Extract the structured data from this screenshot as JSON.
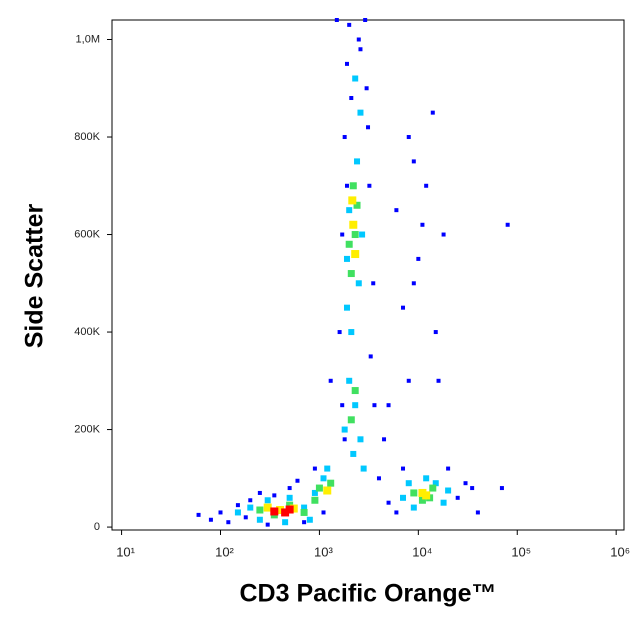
{
  "chart_data": {
    "type": "scatter",
    "x_label": "CD3 Pacific Orange™",
    "y_label": "Side Scatter",
    "x_log": true,
    "xlim": [
      8,
      1200000
    ],
    "ylim": [
      -6000,
      1040000
    ],
    "xticks": [
      {
        "value": 10,
        "label": "10¹"
      },
      {
        "value": 100,
        "label": "10²"
      },
      {
        "value": 1000,
        "label": "10³"
      },
      {
        "value": 10000,
        "label": "10⁴"
      },
      {
        "value": 100000,
        "label": "10⁵"
      },
      {
        "value": 1000000,
        "label": "10⁶"
      }
    ],
    "yticks": [
      0,
      {
        "value": 200000,
        "label": "200K"
      },
      {
        "value": 400000,
        "label": "400K"
      },
      {
        "value": 600000,
        "label": "600K"
      },
      {
        "value": 800000,
        "label": "800K"
      },
      {
        "value": 1000000,
        "label": "1,0M"
      }
    ],
    "series": [
      {
        "color": "#0000ff",
        "x": [
          60,
          80,
          100,
          120,
          150,
          180,
          250,
          300,
          500,
          700,
          900,
          1100,
          600,
          350,
          200,
          1300,
          1600,
          1700,
          1800,
          1900,
          2500,
          3000,
          3200,
          3500,
          1700,
          1800,
          3300,
          3600,
          2000,
          2600,
          3100,
          2900,
          2100,
          1900,
          4000,
          5000,
          6000,
          7000,
          8000,
          9000,
          20000,
          25000,
          30000,
          35000,
          40000,
          15000,
          18000,
          12000,
          8000,
          6000,
          10000,
          7000,
          9000,
          14000,
          11000,
          16000,
          5000,
          4500,
          70000,
          80000,
          1500
        ],
        "y": [
          25000,
          15000,
          30000,
          10000,
          45000,
          20000,
          70000,
          5000,
          80000,
          10000,
          120000,
          30000,
          95000,
          65000,
          55000,
          300000,
          400000,
          600000,
          800000,
          950000,
          1000000,
          900000,
          700000,
          500000,
          250000,
          180000,
          350000,
          250000,
          1030000,
          980000,
          820000,
          1040000,
          880000,
          700000,
          100000,
          50000,
          30000,
          120000,
          300000,
          500000,
          120000,
          60000,
          90000,
          80000,
          30000,
          400000,
          600000,
          700000,
          800000,
          650000,
          550000,
          450000,
          750000,
          850000,
          620000,
          300000,
          250000,
          180000,
          80000,
          620000,
          1040000
        ]
      },
      {
        "color": "#00c8ff",
        "x": [
          150,
          200,
          250,
          300,
          500,
          700,
          900,
          1100,
          1200,
          800,
          450,
          1800,
          2000,
          2300,
          2600,
          1900,
          2100,
          2500,
          2000,
          2400,
          2600,
          2300,
          1900,
          2700,
          2200,
          2800,
          7000,
          9000,
          12000,
          15000,
          18000,
          20000,
          8000
        ],
        "y": [
          30000,
          40000,
          15000,
          55000,
          60000,
          40000,
          70000,
          100000,
          120000,
          15000,
          10000,
          200000,
          300000,
          250000,
          180000,
          450000,
          400000,
          500000,
          650000,
          750000,
          850000,
          920000,
          550000,
          600000,
          150000,
          120000,
          60000,
          40000,
          100000,
          90000,
          50000,
          75000,
          90000
        ]
      },
      {
        "color": "#40e060",
        "x": [
          250,
          350,
          500,
          700,
          1000,
          1300,
          900,
          2100,
          2300,
          2200,
          2000,
          2400,
          2300,
          2100,
          9000,
          11000,
          14000,
          13000
        ],
        "y": [
          35000,
          25000,
          45000,
          30000,
          80000,
          90000,
          55000,
          520000,
          600000,
          700000,
          580000,
          660000,
          280000,
          220000,
          70000,
          55000,
          80000,
          60000
        ]
      },
      {
        "color": "#ffee00",
        "x": [
          400,
          550,
          300,
          1200,
          2200,
          2300,
          2150,
          11000,
          12000
        ],
        "y": [
          35000,
          38000,
          40000,
          75000,
          620000,
          560000,
          670000,
          70000,
          65000
        ]
      },
      {
        "color": "#ff0000",
        "x": [
          350,
          450,
          500
        ],
        "y": [
          32000,
          30000,
          36000
        ]
      }
    ]
  }
}
